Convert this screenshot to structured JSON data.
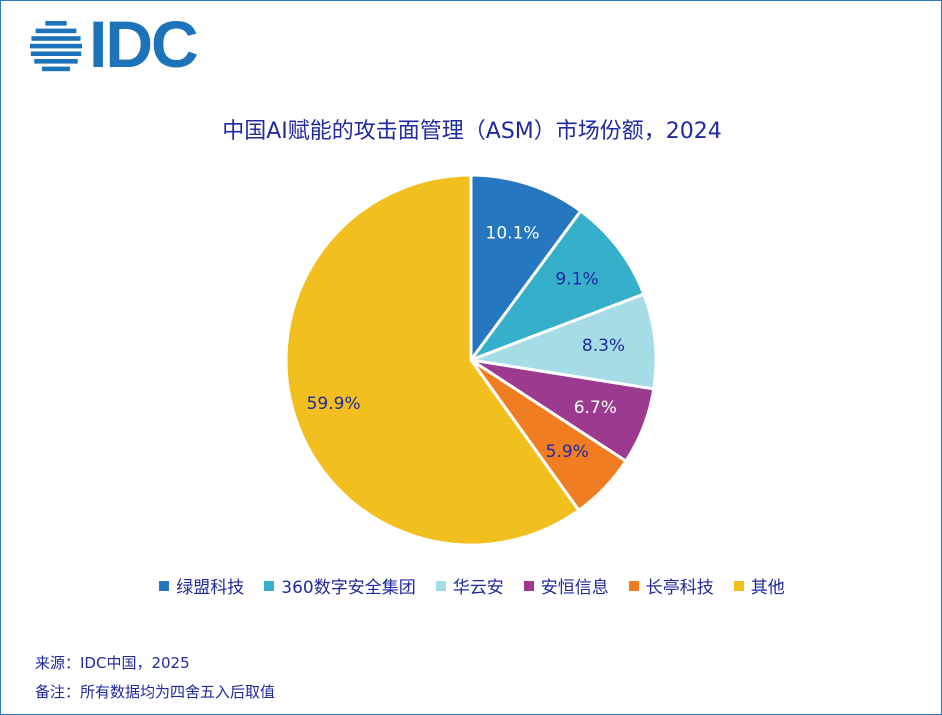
{
  "logo": {
    "text": "IDC",
    "color": "#1c73b9"
  },
  "chart_data": {
    "type": "pie",
    "title": "中国AI赋能的攻击面管理（ASM）市场份额，2024",
    "categories": [
      "绿盟科技",
      "360数字安全集团",
      "华云安",
      "安恒信息",
      "长亭科技",
      "其他"
    ],
    "values": [
      10.1,
      9.1,
      8.3,
      6.7,
      5.9,
      59.9
    ],
    "labels": [
      "10.1%",
      "9.1%",
      "8.3%",
      "6.7%",
      "5.9%",
      "59.9%"
    ],
    "colors": [
      "#2577bf",
      "#36afca",
      "#a5dce6",
      "#9b3a8f",
      "#f07d21",
      "#f2c01e"
    ],
    "label_colors": [
      "#ffffff",
      "#1f2a9e",
      "#1f2a9e",
      "#ffffff",
      "#1f2a9e",
      "#1f2a9e"
    ],
    "start_angle": "12 o'clock",
    "direction": "clockwise",
    "legend_position": "bottom"
  },
  "footer": {
    "source": "来源：IDC中国，2025",
    "note": "备注：所有数据均为四舍五入后取值"
  }
}
